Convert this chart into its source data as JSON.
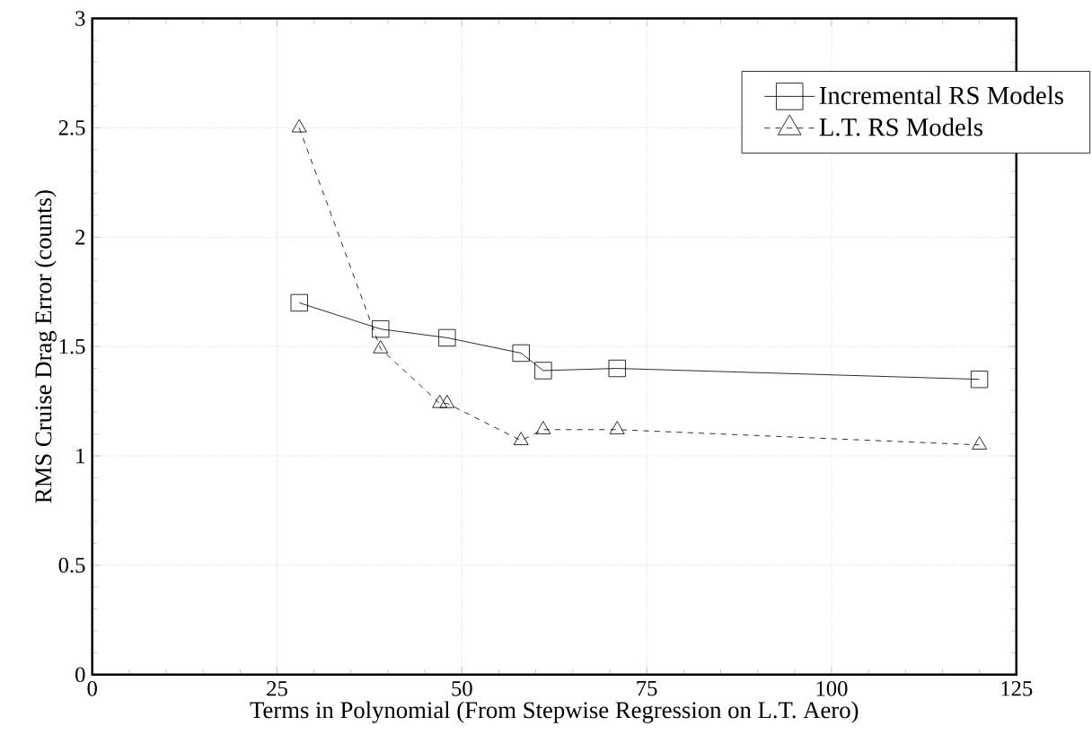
{
  "chart_data": {
    "type": "line",
    "xlabel": "Terms in Polynomial (From Stepwise Regression on L.T. Aero)",
    "ylabel": "RMS Cruise Drag Error (counts)",
    "xlim": [
      0,
      125
    ],
    "xticks": [
      0,
      25,
      50,
      75,
      100,
      125
    ],
    "ylim": [
      0,
      3
    ],
    "yticks": [
      0,
      0.5,
      1,
      1.5,
      2,
      2.5,
      3
    ],
    "grid": true,
    "legend": "top right",
    "series": [
      {
        "name": "Incremental RS Models",
        "color": "#000000",
        "marker": "square",
        "line_style": "solid",
        "x": [
          28,
          39,
          48,
          58,
          61,
          71,
          120
        ],
        "values": [
          1.7,
          1.58,
          1.54,
          1.47,
          1.39,
          1.4,
          1.35
        ]
      },
      {
        "name": "L.T. RS Models",
        "color": "#000000",
        "marker": "triangle",
        "line_style": "dashed",
        "x": [
          28,
          39,
          47,
          48,
          58,
          61,
          71,
          120
        ],
        "values": [
          2.5,
          1.49,
          1.24,
          1.24,
          1.07,
          1.12,
          1.12,
          1.05
        ]
      }
    ]
  }
}
